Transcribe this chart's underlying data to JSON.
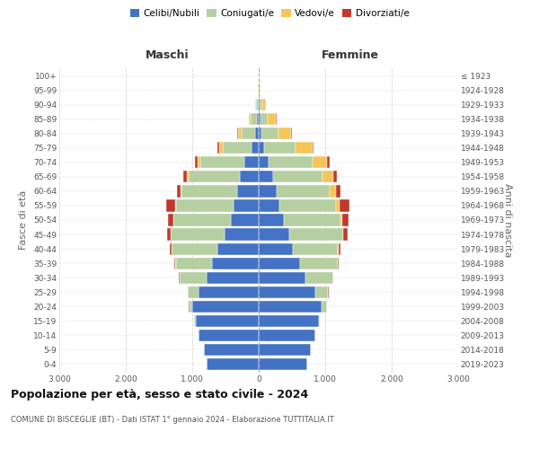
{
  "age_groups": [
    "0-4",
    "5-9",
    "10-14",
    "15-19",
    "20-24",
    "25-29",
    "30-34",
    "35-39",
    "40-44",
    "45-49",
    "50-54",
    "55-59",
    "60-64",
    "65-69",
    "70-74",
    "75-79",
    "80-84",
    "85-89",
    "90-94",
    "95-99",
    "100+"
  ],
  "birth_years": [
    "2019-2023",
    "2014-2018",
    "2009-2013",
    "2004-2008",
    "1999-2003",
    "1994-1998",
    "1989-1993",
    "1984-1988",
    "1979-1983",
    "1974-1978",
    "1969-1973",
    "1964-1968",
    "1959-1963",
    "1954-1958",
    "1949-1953",
    "1944-1948",
    "1939-1943",
    "1934-1938",
    "1929-1933",
    "1924-1928",
    "≤ 1923"
  ],
  "maschi": {
    "celibi": [
      780,
      820,
      900,
      950,
      1000,
      900,
      780,
      700,
      620,
      520,
      420,
      380,
      320,
      280,
      220,
      110,
      60,
      30,
      10,
      5,
      2
    ],
    "coniugati": [
      2,
      2,
      4,
      18,
      45,
      170,
      410,
      550,
      690,
      800,
      860,
      870,
      840,
      780,
      660,
      430,
      200,
      90,
      35,
      8,
      2
    ],
    "vedovi": [
      0,
      0,
      0,
      0,
      0,
      0,
      1,
      1,
      2,
      3,
      4,
      8,
      14,
      22,
      38,
      55,
      50,
      30,
      10,
      2,
      0
    ],
    "divorziati": [
      0,
      0,
      0,
      2,
      4,
      4,
      7,
      18,
      28,
      55,
      85,
      135,
      55,
      48,
      38,
      28,
      8,
      5,
      2,
      0,
      0
    ]
  },
  "femmine": {
    "nubili": [
      730,
      780,
      850,
      900,
      950,
      850,
      700,
      620,
      510,
      460,
      380,
      315,
      265,
      210,
      150,
      75,
      40,
      22,
      10,
      4,
      2
    ],
    "coniugate": [
      2,
      2,
      4,
      18,
      75,
      195,
      418,
      565,
      685,
      805,
      855,
      850,
      800,
      755,
      655,
      480,
      255,
      115,
      42,
      8,
      2
    ],
    "vedove": [
      0,
      0,
      0,
      0,
      1,
      1,
      2,
      3,
      7,
      12,
      28,
      55,
      95,
      155,
      220,
      250,
      195,
      125,
      50,
      10,
      2
    ],
    "divorziate": [
      0,
      0,
      0,
      2,
      4,
      4,
      7,
      18,
      32,
      65,
      85,
      145,
      75,
      55,
      38,
      22,
      8,
      5,
      2,
      0,
      0
    ]
  },
  "colors": {
    "celibi": "#4472c4",
    "coniugati": "#b5cfa0",
    "vedovi": "#f5c55a",
    "divorziati": "#c0392b"
  },
  "xlim": 3000,
  "xticks": [
    -3000,
    -2000,
    -1000,
    0,
    1000,
    2000,
    3000
  ],
  "title": "Popolazione per età, sesso e stato civile - 2024",
  "subtitle": "COMUNE DI BISCEGLIE (BT) - Dati ISTAT 1° gennaio 2024 - Elaborazione TUTTITALIA.IT",
  "ylabel_left": "Fasce di età",
  "ylabel_right": "Anni di nascita",
  "xlabel_maschi": "Maschi",
  "xlabel_femmine": "Femmine",
  "legend_labels": [
    "Celibi/Nubili",
    "Coniugati/e",
    "Vedovi/e",
    "Divorziati/e"
  ],
  "bg_color": "#ffffff",
  "grid_color": "#cccccc"
}
